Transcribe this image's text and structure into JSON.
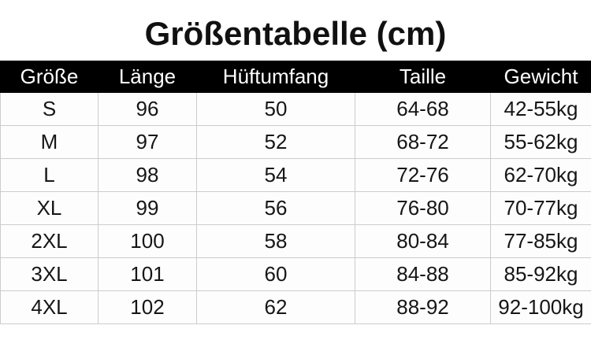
{
  "title": "Größentabelle (cm)",
  "table": {
    "headers": [
      "Größe",
      "Länge",
      "Hüftumfang",
      "Taille",
      "Gewicht"
    ],
    "rows": [
      [
        "S",
        "96",
        "50",
        "64-68",
        "42-55kg"
      ],
      [
        "M",
        "97",
        "52",
        "68-72",
        "55-62kg"
      ],
      [
        "L",
        "98",
        "54",
        "72-76",
        "62-70kg"
      ],
      [
        "XL",
        "99",
        "56",
        "76-80",
        "70-77kg"
      ],
      [
        "2XL",
        "100",
        "58",
        "80-84",
        "77-85kg"
      ],
      [
        "3XL",
        "101",
        "60",
        "84-88",
        "85-92kg"
      ],
      [
        "4XL",
        "102",
        "62",
        "88-92",
        "92-100kg"
      ]
    ]
  },
  "colors": {
    "header_bg": "#000000",
    "header_text": "#ffffff",
    "grid_line": "#cccccc",
    "body_text": "#161616",
    "background": "#ffffff"
  }
}
